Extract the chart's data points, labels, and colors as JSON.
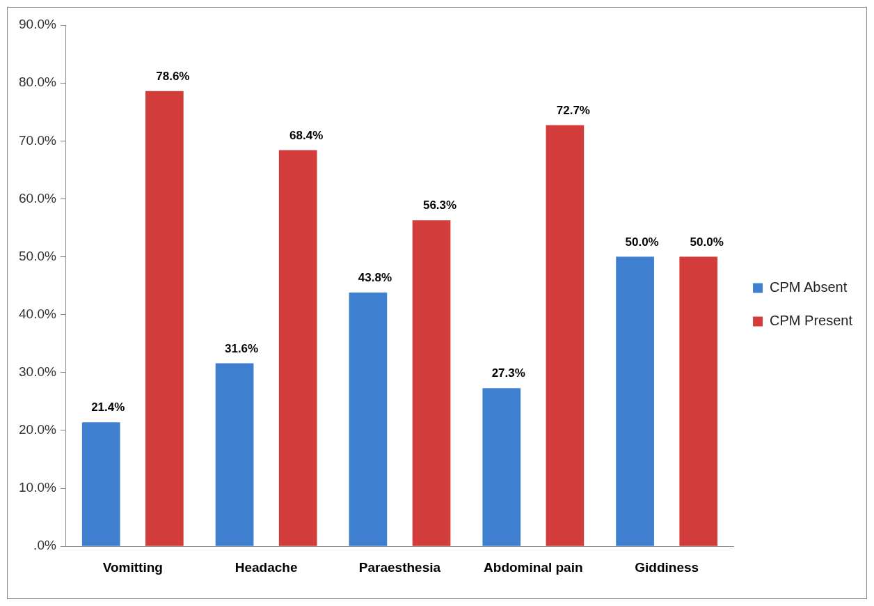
{
  "chart_data": {
    "type": "bar",
    "categories": [
      "Vomitting",
      "Headache",
      "Paraesthesia",
      "Abdominal pain",
      "Giddiness"
    ],
    "series": [
      {
        "name": "CPM Absent",
        "color": "#3f7fd0",
        "values": [
          21.4,
          31.6,
          43.8,
          27.3,
          50.0
        ],
        "value_labels": [
          "21.4%",
          "31.6%",
          "43.8%",
          "27.3%",
          "50.0%"
        ]
      },
      {
        "name": "CPM Present",
        "color": "#d23c3a",
        "values": [
          78.6,
          68.4,
          56.3,
          72.7,
          50.0
        ],
        "value_labels": [
          "78.6%",
          "68.4%",
          "56.3%",
          "72.7%",
          "50.0%"
        ]
      }
    ],
    "ylim": [
      0,
      90
    ],
    "yticks": [
      {
        "value": 0,
        "label": ".0%"
      },
      {
        "value": 10,
        "label": "10.0%"
      },
      {
        "value": 20,
        "label": "20.0%"
      },
      {
        "value": 30,
        "label": "30.0%"
      },
      {
        "value": 40,
        "label": "40.0%"
      },
      {
        "value": 50,
        "label": "50.0%"
      },
      {
        "value": 60,
        "label": "60.0%"
      },
      {
        "value": 70,
        "label": "70.0%"
      },
      {
        "value": 80,
        "label": "80.0%"
      },
      {
        "value": 90,
        "label": "90.0%"
      }
    ],
    "grid": false,
    "legend": "right"
  }
}
